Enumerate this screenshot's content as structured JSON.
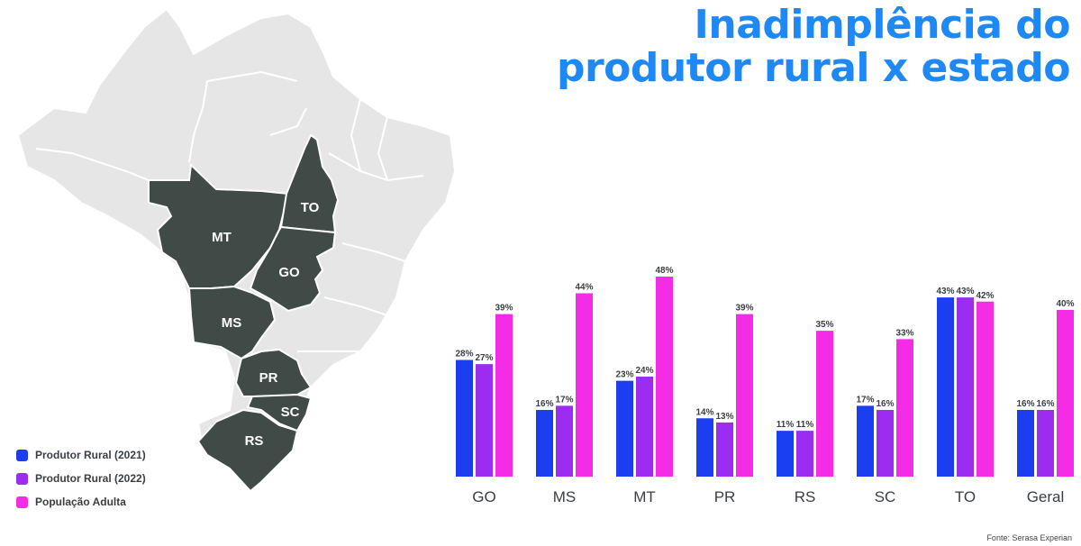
{
  "title": {
    "line1": "Inadimplência do",
    "line2": "produtor rural x estado"
  },
  "source": "Fonte: Serasa Experian",
  "colors": {
    "title": "#1e88f5",
    "map_highlight": "#404a47",
    "map_base": "#e6e6e6"
  },
  "map_labels": [
    "MT",
    "TO",
    "GO",
    "MS",
    "PR",
    "SC",
    "RS"
  ],
  "chart_data": {
    "type": "bar",
    "categories": [
      "GO",
      "MS",
      "MT",
      "PR",
      "RS",
      "SC",
      "TO",
      "Geral"
    ],
    "series": [
      {
        "name": "Produtor Rural (2021)",
        "color": "#1b3ff0",
        "values": [
          28,
          16,
          23,
          14,
          11,
          17,
          43,
          16
        ]
      },
      {
        "name": "Produtor Rural (2022)",
        "color": "#9b2cf0",
        "values": [
          27,
          17,
          24,
          13,
          11,
          16,
          43,
          16
        ]
      },
      {
        "name": "População Adulta",
        "color": "#f52ce6",
        "values": [
          39,
          44,
          48,
          39,
          35,
          33,
          42,
          40
        ]
      }
    ],
    "value_suffix": "%",
    "ylim": [
      0,
      48
    ],
    "legend_position": "bottom-left",
    "grid": false
  }
}
